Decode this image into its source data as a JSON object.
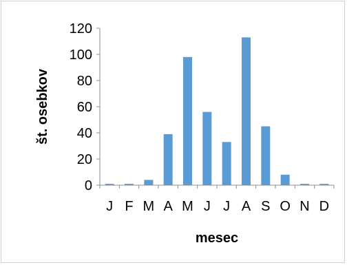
{
  "chart_data": {
    "type": "bar",
    "title": "",
    "xlabel": "mesec",
    "ylabel": "št. osebkov",
    "categories": [
      "J",
      "F",
      "M",
      "A",
      "M",
      "J",
      "J",
      "A",
      "S",
      "O",
      "N",
      "D"
    ],
    "values": [
      1,
      1,
      4,
      39,
      98,
      56,
      33,
      113,
      45,
      8,
      1,
      1
    ],
    "ylim": [
      0,
      120
    ],
    "yticks": [
      "0",
      "20",
      "40",
      "60",
      "80",
      "100",
      "120"
    ],
    "grid": false,
    "legend": "none",
    "bar_color": "#5b9bd5"
  }
}
